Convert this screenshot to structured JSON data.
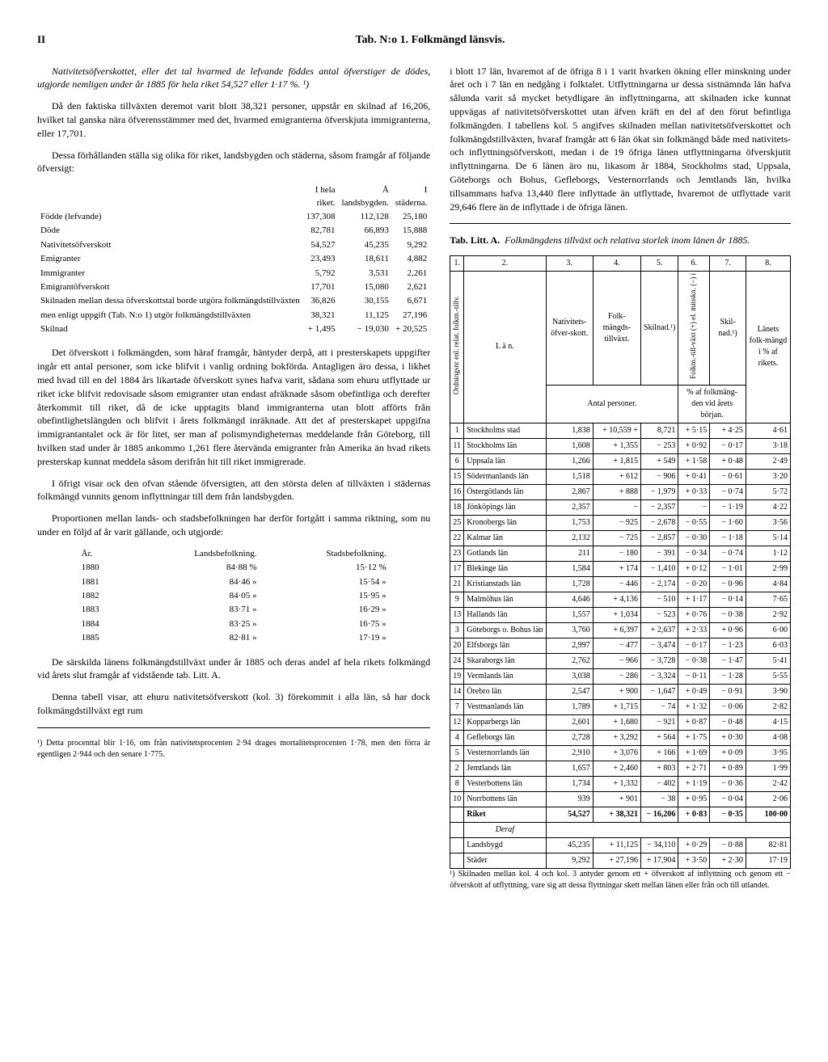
{
  "page_number": "II",
  "page_title": "Tab. N:o 1. Folkmängd länsvis.",
  "left": {
    "p1": "Nativitetsöfverskottet, eller det tal hvarmed de lefvande föddes antal öfverstiger de dödes, utgjorde nemligen under år 1885 för hela riket 54,527 eller 1·17 %. ¹)",
    "p2": "Då den faktiska tillväxten deremot varit blott 38,321 personer, uppstår en skilnad af 16,206, hvilket tal ganska nära öfverensstämmer med det, hvarmed emigranterna öfverskjuta immigranterna, eller 17,701.",
    "p3": "Dessa förhållanden ställa sig olika för riket, landsbygden och städerna, såsom framgår af följande öfversigt:",
    "small_table": {
      "headers": [
        "",
        "I hela riket.",
        "Å landsbygden.",
        "I städerna."
      ],
      "rows": [
        [
          "Födde (lefvande)",
          "137,308",
          "112,128",
          "25,180"
        ],
        [
          "Döde",
          "82,781",
          "66,893",
          "15,888"
        ],
        [
          "Nativitetsöfverskott",
          "54,527",
          "45,235",
          "9,292"
        ],
        [
          "Emigranter",
          "23,493",
          "18,611",
          "4,882"
        ],
        [
          "Immigranter",
          "5,792",
          "3,531",
          "2,261"
        ],
        [
          "Emigrantöfverskott",
          "17,701",
          "15,080",
          "2,621"
        ],
        [
          "Skilnaden mellan dessa öfverskottstal borde utgöra folkmängdstillväxten",
          "36,826",
          "30,155",
          "6,671"
        ],
        [
          "men enligt uppgift (Tab. N:o 1) utgör folkmängdstillväxten",
          "38,321",
          "11,125",
          "27,196"
        ],
        [
          "Skilnad",
          "+ 1,495",
          "− 19,030",
          "+ 20,525"
        ]
      ]
    },
    "p4": "Det öfverskott i folkmängden, som häraf framgår, häntyder derpå, att i presterskapets uppgifter ingår ett antal personer, som icke blifvit i vanlig ordning bokförda. Antagligen äro dessa, i likhet med hvad till en del 1884 års likartade öfverskott synes hafva varit, sådana som ehuru utflyttade ur riket icke blifvit redovisade såsom emigranter utan endast afräknade såsom obefintliga och derefter återkommit till riket, då de icke upptagits bland immigranterna utan blott afförts från obefintlighetslängden och blifvit i årets folkmängd inräknade. Att det af presterskapet uppgifna immigrantantalet ock är för litet, ser man af polismyndigheternas meddelande från Göteborg, till hvilken stad under år 1885 ankommo 1,261 flere återvända emigranter från Amerika än hvad rikets presterskap kunnat meddela såsom derifrån hit till riket immigrerade.",
    "p5": "I öfrigt visar ock den ofvan stående öfversigten, att den största delen af tillväxten i städernas folkmängd vunnits genom inflyttningar till dem från landsbygden.",
    "p6": "Proportionen mellan lands- och stadsbefolkningen har derför fortgått i samma riktning, som nu under en följd af år varit gällande, och utgjorde:",
    "yr_table": {
      "headers": [
        "År.",
        "Landsbefolkning.",
        "Stadsbefolkning."
      ],
      "rows": [
        [
          "1880",
          "84·88 %",
          "15·12 %"
        ],
        [
          "1881",
          "84·46 »",
          "15·54 »"
        ],
        [
          "1882",
          "84·05 »",
          "15·95 »"
        ],
        [
          "1883",
          "83·71 »",
          "16·29 »"
        ],
        [
          "1884",
          "83·25 »",
          "16·75 »"
        ],
        [
          "1885",
          "82·81 »",
          "17·19 »"
        ]
      ]
    },
    "p7": "De särskilda länens folkmängdstillväxt under år 1885 och deras andel af hela rikets folkmängd vid årets slut framgår af vidstående tab. Litt. A.",
    "p8": "Denna tabell visar, att ehuru nativitetsöfverskott (kol. 3) förekommit i alla län, så har dock folkmängdstillväxt egt rum",
    "footnote": "¹) Detta procenttal blir 1·16, om från nativitetsprocenten 2·94 drages mortalitetsprocenten 1·78, men den förra är egentligen 2·944 och den senare 1·775."
  },
  "right": {
    "p1": "i blott 17 län, hvaremot af de öfriga 8 i 1 varit hvarken ökning eller minskning under året och i 7 län en nedgång i folktalet. Utflyttningarna ur dessa sistnämnda län hafva sålunda varit så mycket betydligare än inflyttningarna, att skilnaden icke kunnat uppvägas af nativitetsöfverskottet utan äfven kräft en del af den förut befintliga folkmängden. I tabellens kol. 5 angifves skilnaden mellan nativitetsöfverskottet och folkmängdstillväxten, hvaraf framgår att 6 län ökat sin folkmängd både med nativitets- och inflyttningsöfverskott, medan i de 19 öfriga länen utflyttningarna öfverskjutit inflyttningarna. De 6 länen äro nu, likasom år 1884, Stockholms stad, Uppsala, Göteborgs och Bohus, Gefleborgs, Vesternorrlands och Jemtlands län, hvilka tillsammans hafva 13,440 flere inflyttade än utflyttade, hvaremot de utflyttade varit 29,646 flere än de inflyttade i de öfriga länen.",
    "tab_caption_a": "Tab. Litt. A.",
    "tab_caption_b": "Folkmängdens tillväxt och relativa storlek inom länen år 1885.",
    "big_table": {
      "col_headers_top": [
        "1.",
        "2.",
        "3.",
        "4.",
        "5.",
        "6.",
        "7.",
        "8."
      ],
      "h_ord": "Ordningsnr enl. relat. folkm.-tillv.",
      "h_lan": "L ä n.",
      "h3": "Nativitets-öfver-skott.",
      "h4": "Folk-mängds-tillväxt.",
      "h5": "Skilnad.¹)",
      "h6": "Folkm.-till-växt (+) el. minskn. (−) i",
      "h7": "Skil-nad.¹)",
      "h8": "Länets folk-mängd i % af rikets.",
      "sub345": "Antal personer.",
      "sub67": "% af folkmäng-den vid årets början.",
      "rows": [
        [
          "1",
          "Stockholms stad",
          "1,838",
          "+ 10,559",
          "+",
          "8,721",
          "+ 5·15",
          "+ 4·25",
          "4·61"
        ],
        [
          "11",
          "Stockholms län",
          "1,608",
          "+",
          "1,355",
          "−",
          "253",
          "+ 0·92",
          "− 0·17",
          "3·18"
        ],
        [
          "6",
          "Uppsala län",
          "1,266",
          "+",
          "1,815",
          "+",
          "549",
          "+ 1·58",
          "+ 0·48",
          "2·49"
        ],
        [
          "15",
          "Södermanlands län",
          "1,518",
          "+",
          "612",
          "−",
          "906",
          "+ 0·41",
          "− 0·61",
          "3·20"
        ],
        [
          "16",
          "Östergötlands län",
          "2,867",
          "+",
          "888",
          "−",
          "1,979",
          "+ 0·33",
          "− 0·74",
          "5·72"
        ],
        [
          "18",
          "Jönköpings län",
          "2,357",
          "",
          "−",
          "−",
          "2,357",
          "−",
          "− 1·19",
          "4·22"
        ],
        [
          "25",
          "Kronobergs län",
          "1,753",
          "−",
          "925",
          "−",
          "2,678",
          "− 0·55",
          "− 1·60",
          "3·56"
        ],
        [
          "22",
          "Kalmar län",
          "2,132",
          "−",
          "725",
          "−",
          "2,857",
          "− 0·30",
          "− 1·18",
          "5·14"
        ],
        [
          "23",
          "Gotlands län",
          "211",
          "−",
          "180",
          "−",
          "391",
          "− 0·34",
          "− 0·74",
          "1·12"
        ],
        [
          "17",
          "Blekinge län",
          "1,584",
          "+",
          "174",
          "−",
          "1,410",
          "+ 0·12",
          "− 1·01",
          "2·99"
        ],
        [
          "21",
          "Kristianstads län",
          "1,728",
          "−",
          "446",
          "−",
          "2,174",
          "− 0·20",
          "− 0·96",
          "4·84"
        ],
        [
          "9",
          "Malmöhus län",
          "4,646",
          "+",
          "4,136",
          "−",
          "510",
          "+ 1·17",
          "− 0·14",
          "7·65"
        ],
        [
          "13",
          "Hallands län",
          "1,557",
          "+",
          "1,034",
          "−",
          "523",
          "+ 0·76",
          "− 0·38",
          "2·92"
        ],
        [
          "3",
          "Göteborgs o. Bohus län",
          "3,760",
          "+",
          "6,397",
          "+",
          "2,637",
          "+ 2·33",
          "+ 0·96",
          "6·00"
        ],
        [
          "20",
          "Elfsborgs län",
          "2,997",
          "−",
          "477",
          "−",
          "3,474",
          "− 0·17",
          "− 1·23",
          "6·03"
        ],
        [
          "24",
          "Skaraborgs län",
          "2,762",
          "−",
          "966",
          "−",
          "3,728",
          "− 0·38",
          "− 1·47",
          "5·41"
        ],
        [
          "19",
          "Vermlands län",
          "3,038",
          "−",
          "286",
          "−",
          "3,324",
          "− 0·11",
          "− 1·28",
          "5·55"
        ],
        [
          "14",
          "Örebro län",
          "2,547",
          "+",
          "900",
          "−",
          "1,647",
          "+ 0·49",
          "− 0·91",
          "3·90"
        ],
        [
          "7",
          "Vestmanlands län",
          "1,789",
          "+",
          "1,715",
          "−",
          "74",
          "+ 1·32",
          "− 0·06",
          "2·82"
        ],
        [
          "12",
          "Kopparbergs län",
          "2,601",
          "+",
          "1,680",
          "−",
          "921",
          "+ 0·87",
          "− 0·48",
          "4·15"
        ],
        [
          "4",
          "Gefleborgs län",
          "2,728",
          "+",
          "3,292",
          "+",
          "564",
          "+ 1·75",
          "+ 0·30",
          "4·08"
        ],
        [
          "5",
          "Vesternorrlands län",
          "2,910",
          "+",
          "3,076",
          "+",
          "166",
          "+ 1·69",
          "+ 0·09",
          "3·95"
        ],
        [
          "2",
          "Jemtlands län",
          "1,657",
          "+",
          "2,460",
          "+",
          "803",
          "+ 2·71",
          "+ 0·89",
          "1·99"
        ],
        [
          "8",
          "Vesterbottens län",
          "1,734",
          "+",
          "1,332",
          "−",
          "402",
          "+ 1·19",
          "− 0·36",
          "2·42"
        ],
        [
          "10",
          "Norrbottens län",
          "939",
          "+",
          "901",
          "−",
          "38",
          "+ 0·95",
          "− 0·04",
          "2·06"
        ]
      ],
      "riket": [
        "",
        "Riket",
        "54,527",
        "+ 38,321",
        "− 16,206",
        "+ 0·83",
        "− 0·35",
        "100·00"
      ],
      "deraf": "Deraf",
      "landsbygd": [
        "",
        "Landsbygd",
        "45,235",
        "+ 11,125",
        "− 34,110",
        "+ 0·29",
        "− 0·88",
        "82·81"
      ],
      "stader": [
        "",
        "Städer",
        "9,292",
        "+ 27,196",
        "+ 17,904",
        "+ 3·50",
        "+ 2·30",
        "17·19"
      ]
    },
    "footnote": "¹) Skilnaden mellan kol. 4 och kol. 3 antyder genom ett + öfverskott af inflyttning och genom ett − öfverskott af utflyttning, vare sig att dessa flyttningar skett mellan länen eller från och till utlandet."
  }
}
